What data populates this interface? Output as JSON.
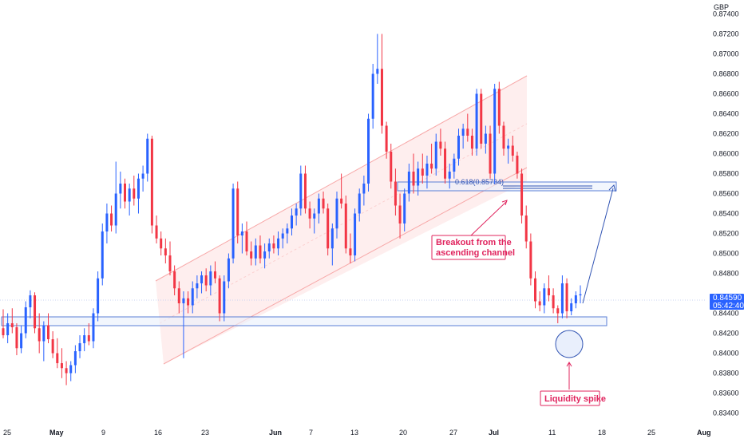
{
  "chart_data": {
    "type": "candlestick",
    "symbol_currency": "GBP",
    "price_axis_ticks": [
      "0.87400",
      "0.87200",
      "0.87000",
      "0.86800",
      "0.86600",
      "0.86400",
      "0.86200",
      "0.86000",
      "0.85800",
      "0.85600",
      "0.85400",
      "0.85200",
      "0.85000",
      "0.84800",
      "0.84400",
      "0.84200",
      "0.84000",
      "0.83800",
      "0.83600",
      "0.83400"
    ],
    "time_axis_ticks": [
      "25",
      "May",
      "9",
      "16",
      "23",
      "Jun",
      "7",
      "13",
      "20",
      "27",
      "Jul",
      "11",
      "18",
      "25",
      "Aug"
    ],
    "last_price": "0.84590",
    "countdown": "05:42:40",
    "ylim": [
      0.833,
      0.875
    ],
    "annotations": {
      "fib_label": "0.618(0.85734)",
      "breakout_label": [
        "Breakout from the",
        "ascending channel"
      ],
      "liquidity_label": "Liquidity spike"
    },
    "colors": {
      "up": "#2962ff",
      "down": "#f23645",
      "channel_fill": "#fde8e8",
      "zone_stroke": "#5b7fd6",
      "annotation": "#e0245e"
    },
    "candles": [
      [
        0.8425,
        0.8444,
        0.8415,
        0.8418
      ],
      [
        0.8418,
        0.844,
        0.841,
        0.843
      ],
      [
        0.843,
        0.8445,
        0.842,
        0.8426
      ],
      [
        0.8426,
        0.843,
        0.8398,
        0.8405
      ],
      [
        0.8405,
        0.8428,
        0.84,
        0.842
      ],
      [
        0.842,
        0.8452,
        0.8415,
        0.8446
      ],
      [
        0.8446,
        0.8463,
        0.8435,
        0.8458
      ],
      [
        0.8458,
        0.8461,
        0.842,
        0.8425
      ],
      [
        0.8425,
        0.844,
        0.84,
        0.8412
      ],
      [
        0.8412,
        0.8432,
        0.8392,
        0.8428
      ],
      [
        0.8428,
        0.844,
        0.841,
        0.8414
      ],
      [
        0.8414,
        0.8422,
        0.8395,
        0.84
      ],
      [
        0.84,
        0.8415,
        0.8385,
        0.839
      ],
      [
        0.839,
        0.8405,
        0.8375,
        0.8385
      ],
      [
        0.8385,
        0.8392,
        0.8368,
        0.838
      ],
      [
        0.838,
        0.8392,
        0.8372,
        0.8388
      ],
      [
        0.8388,
        0.8408,
        0.838,
        0.8402
      ],
      [
        0.8402,
        0.8418,
        0.8395,
        0.841
      ],
      [
        0.841,
        0.8425,
        0.8402,
        0.8418
      ],
      [
        0.8418,
        0.843,
        0.8408,
        0.8412
      ],
      [
        0.8412,
        0.8445,
        0.8405,
        0.844
      ],
      [
        0.844,
        0.8482,
        0.8432,
        0.8475
      ],
      [
        0.8475,
        0.853,
        0.8468,
        0.8522
      ],
      [
        0.8522,
        0.855,
        0.851,
        0.854
      ],
      [
        0.854,
        0.8548,
        0.8522,
        0.8528
      ],
      [
        0.8528,
        0.8592,
        0.852,
        0.856
      ],
      [
        0.856,
        0.8582,
        0.8545,
        0.857
      ],
      [
        0.857,
        0.8575,
        0.8545,
        0.8552
      ],
      [
        0.8552,
        0.857,
        0.8538,
        0.8565
      ],
      [
        0.8565,
        0.8578,
        0.8548,
        0.8555
      ],
      [
        0.8555,
        0.858,
        0.854,
        0.8575
      ],
      [
        0.8575,
        0.8588,
        0.8562,
        0.858
      ],
      [
        0.858,
        0.862,
        0.8572,
        0.8615
      ],
      [
        0.8615,
        0.8618,
        0.852,
        0.8528
      ],
      [
        0.8528,
        0.8538,
        0.851,
        0.8515
      ],
      [
        0.8515,
        0.8522,
        0.8498,
        0.8505
      ],
      [
        0.8505,
        0.8515,
        0.849,
        0.8498
      ],
      [
        0.8498,
        0.8512,
        0.8478,
        0.8482
      ],
      [
        0.8482,
        0.8488,
        0.8458,
        0.8465
      ],
      [
        0.8465,
        0.8472,
        0.844,
        0.845
      ],
      [
        0.845,
        0.8462,
        0.8395,
        0.8455
      ],
      [
        0.8455,
        0.8462,
        0.844,
        0.8448
      ],
      [
        0.8448,
        0.8472,
        0.844,
        0.8465
      ],
      [
        0.8465,
        0.8478,
        0.8455,
        0.847
      ],
      [
        0.847,
        0.8482,
        0.846,
        0.8478
      ],
      [
        0.8478,
        0.8485,
        0.8462,
        0.8468
      ],
      [
        0.8468,
        0.8488,
        0.8458,
        0.8482
      ],
      [
        0.8482,
        0.8492,
        0.847,
        0.8475
      ],
      [
        0.8475,
        0.8478,
        0.8432,
        0.844
      ],
      [
        0.844,
        0.8478,
        0.8432,
        0.8472
      ],
      [
        0.8472,
        0.85,
        0.8465,
        0.8495
      ],
      [
        0.8495,
        0.857,
        0.849,
        0.8565
      ],
      [
        0.8565,
        0.8572,
        0.851,
        0.8518
      ],
      [
        0.8518,
        0.853,
        0.85,
        0.8522
      ],
      [
        0.8522,
        0.8532,
        0.8498,
        0.8502
      ],
      [
        0.8502,
        0.8512,
        0.8488,
        0.8495
      ],
      [
        0.8495,
        0.8515,
        0.8488,
        0.8508
      ],
      [
        0.8508,
        0.8518,
        0.849,
        0.8495
      ],
      [
        0.8495,
        0.851,
        0.8485,
        0.8502
      ],
      [
        0.8502,
        0.8515,
        0.8495,
        0.851
      ],
      [
        0.851,
        0.8518,
        0.85,
        0.8505
      ],
      [
        0.8505,
        0.8522,
        0.8498,
        0.8515
      ],
      [
        0.8515,
        0.8525,
        0.8505,
        0.852
      ],
      [
        0.852,
        0.853,
        0.851,
        0.8525
      ],
      [
        0.8525,
        0.8545,
        0.8518,
        0.8538
      ],
      [
        0.8538,
        0.855,
        0.8528,
        0.8545
      ],
      [
        0.8545,
        0.8588,
        0.8538,
        0.858
      ],
      [
        0.858,
        0.8588,
        0.854,
        0.8545
      ],
      [
        0.8545,
        0.8552,
        0.8525,
        0.8535
      ],
      [
        0.8535,
        0.8545,
        0.852,
        0.854
      ],
      [
        0.854,
        0.856,
        0.853,
        0.8555
      ],
      [
        0.8555,
        0.8562,
        0.854,
        0.8545
      ],
      [
        0.8545,
        0.855,
        0.8498,
        0.8505
      ],
      [
        0.8505,
        0.853,
        0.8488,
        0.8525
      ],
      [
        0.8525,
        0.8562,
        0.8515,
        0.8555
      ],
      [
        0.8555,
        0.858,
        0.8545,
        0.855
      ],
      [
        0.855,
        0.8558,
        0.85,
        0.8505
      ],
      [
        0.8505,
        0.852,
        0.849,
        0.8498
      ],
      [
        0.8498,
        0.8545,
        0.8492,
        0.854
      ],
      [
        0.854,
        0.8565,
        0.8532,
        0.856
      ],
      [
        0.856,
        0.8578,
        0.8548,
        0.857
      ],
      [
        0.857,
        0.864,
        0.8562,
        0.8635
      ],
      [
        0.8635,
        0.869,
        0.8625,
        0.868
      ],
      [
        0.868,
        0.872,
        0.867,
        0.8685
      ],
      [
        0.8685,
        0.872,
        0.862,
        0.8628
      ],
      [
        0.8628,
        0.8632,
        0.8595,
        0.8602
      ],
      [
        0.8602,
        0.861,
        0.8565,
        0.8572
      ],
      [
        0.8572,
        0.8585,
        0.8538,
        0.8548
      ],
      [
        0.8548,
        0.856,
        0.8515,
        0.853
      ],
      [
        0.853,
        0.8565,
        0.8522,
        0.856
      ],
      [
        0.856,
        0.859,
        0.8552,
        0.8582
      ],
      [
        0.8582,
        0.86,
        0.856,
        0.8568
      ],
      [
        0.8568,
        0.8592,
        0.8558,
        0.8585
      ],
      [
        0.8585,
        0.86,
        0.857,
        0.8578
      ],
      [
        0.8578,
        0.8598,
        0.8565,
        0.859
      ],
      [
        0.859,
        0.861,
        0.858,
        0.8585
      ],
      [
        0.8585,
        0.862,
        0.8578,
        0.8612
      ],
      [
        0.8612,
        0.8625,
        0.8598,
        0.8605
      ],
      [
        0.8605,
        0.8612,
        0.857,
        0.8575
      ],
      [
        0.8575,
        0.859,
        0.8565,
        0.8582
      ],
      [
        0.8582,
        0.86,
        0.8575,
        0.8595
      ],
      [
        0.8595,
        0.8625,
        0.8588,
        0.8618
      ],
      [
        0.8618,
        0.863,
        0.8605,
        0.8625
      ],
      [
        0.8625,
        0.864,
        0.8612,
        0.8618
      ],
      [
        0.8618,
        0.8625,
        0.8598,
        0.8605
      ],
      [
        0.8605,
        0.8665,
        0.8598,
        0.866
      ],
      [
        0.866,
        0.8665,
        0.8605,
        0.861
      ],
      [
        0.861,
        0.8628,
        0.86,
        0.862
      ],
      [
        0.862,
        0.8628,
        0.8575,
        0.858
      ],
      [
        0.858,
        0.867,
        0.857,
        0.8665
      ],
      [
        0.8665,
        0.8672,
        0.862,
        0.8628
      ],
      [
        0.8628,
        0.8632,
        0.8598,
        0.8605
      ],
      [
        0.8605,
        0.8615,
        0.859,
        0.8608
      ],
      [
        0.8608,
        0.8618,
        0.8592,
        0.8598
      ],
      [
        0.8598,
        0.8602,
        0.8575,
        0.858
      ],
      [
        0.858,
        0.8585,
        0.853,
        0.8538
      ],
      [
        0.8538,
        0.8548,
        0.8505,
        0.8512
      ],
      [
        0.8512,
        0.852,
        0.8468,
        0.8475
      ],
      [
        0.8475,
        0.8482,
        0.8445,
        0.8452
      ],
      [
        0.8452,
        0.8462,
        0.8442,
        0.8448
      ],
      [
        0.8448,
        0.847,
        0.844,
        0.8465
      ],
      [
        0.8465,
        0.8478,
        0.8452,
        0.8458
      ],
      [
        0.8458,
        0.8465,
        0.844,
        0.8445
      ],
      [
        0.8445,
        0.8448,
        0.843,
        0.844
      ],
      [
        0.844,
        0.8478,
        0.8435,
        0.847
      ],
      [
        0.847,
        0.8475,
        0.8435,
        0.8442
      ],
      [
        0.8442,
        0.8455,
        0.8438,
        0.845
      ],
      [
        0.845,
        0.8462,
        0.8445,
        0.8458
      ],
      [
        0.8458,
        0.8468,
        0.845,
        0.8459
      ]
    ]
  }
}
